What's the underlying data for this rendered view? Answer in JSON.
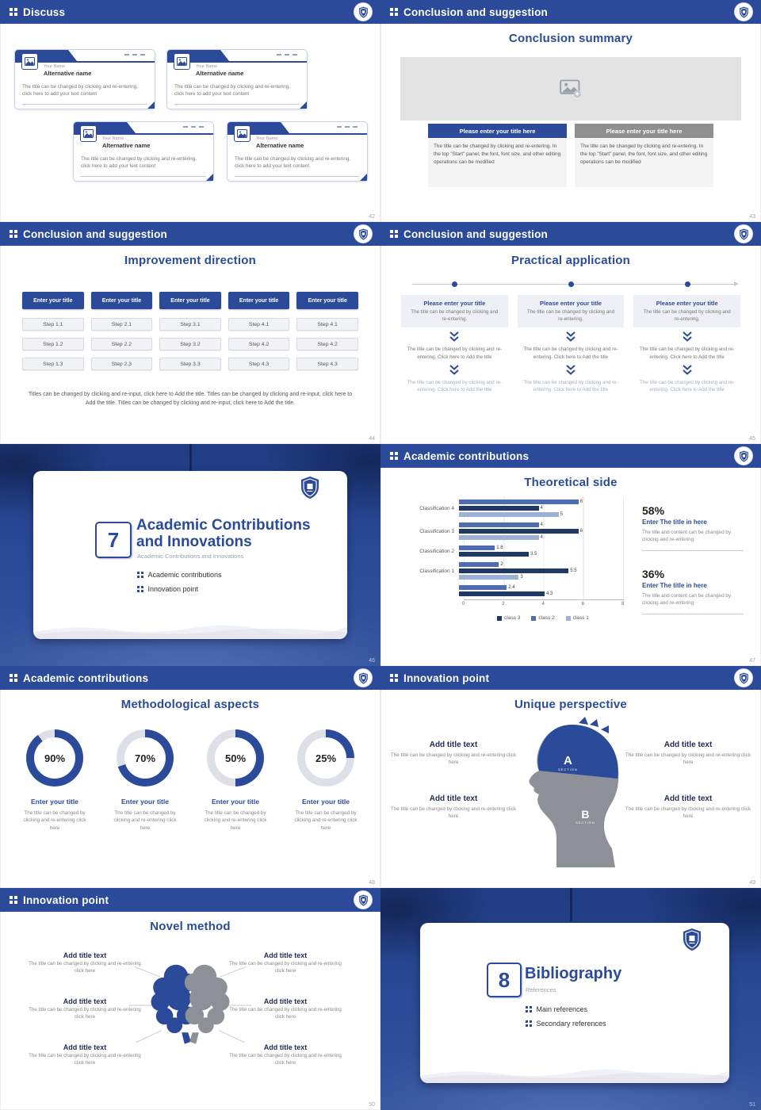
{
  "colors": {
    "accent": "#2b4a99",
    "gray_button": "#8f8f8f",
    "bar_medium": "#4d6db0",
    "bar_dark": "#1f3864",
    "bar_light": "#9db1d6"
  },
  "icons": {
    "header_bullet": "grid-dots",
    "emblem": "university-shield",
    "image_placeholder": "picture-plus",
    "chevron": "double-chevron-down",
    "corner_fold": "folded-corner"
  },
  "s42": {
    "header": "Discuss",
    "page": "42",
    "card": {
      "name": "Your Name",
      "alt": "Alternative name",
      "body": "The title can be changed by clicking and re-entering, click here to add your text content"
    }
  },
  "s43": {
    "header": "Conclusion and suggestion",
    "title": "Conclusion summary",
    "page": "43",
    "btn_blue": "Please enter your title here",
    "btn_gray": "Please enter your title here",
    "body": "The title can be changed by clicking and re-entering. In the top \"Start\" panel, the font, font size, and other editing operations can be modified"
  },
  "s44": {
    "header": "Conclusion and suggestion",
    "title": "Improvement direction",
    "page": "44",
    "columns": [
      {
        "title": "Enter your title",
        "steps": [
          "Step 1.1",
          "Step 1.2",
          "Step 1.3"
        ]
      },
      {
        "title": "Enter your title",
        "steps": [
          "Step 2.1",
          "Step 2.2",
          "Step 2.3"
        ]
      },
      {
        "title": "Enter your title",
        "steps": [
          "Step 3.1",
          "Step 3.2",
          "Step 3.3"
        ]
      },
      {
        "title": "Enter your title",
        "steps": [
          "Step 4.1",
          "Step 4.2",
          "Step 4.3"
        ]
      },
      {
        "title": "Enter your title",
        "steps": [
          "Step 4.1",
          "Step 4.2",
          "Step 4.3"
        ]
      }
    ],
    "footer": "Titles can be changed by clicking and re-input, click here to Add the title. Titles can be changed by clicking and re-input, click here to Add the title. Titles can be changed by clicking and re-input, click here to Add the title."
  },
  "s45": {
    "header": "Conclusion and suggestion",
    "title": "Practical application",
    "page": "45",
    "col": {
      "box_title": "Please enter your title",
      "box_body": "The title can be changed by clicking and re-entering.",
      "mid_text": "The title can be changed by clicking and re-entering. Click here to Add the title",
      "bottom_text": "The title can be changed by clicking and re-entering. Click here to Add the title"
    }
  },
  "s46": {
    "page": "46",
    "number": "7",
    "title": "Academic Contributions and Innovations",
    "subtitle": "Academic Contributions and Innovations",
    "bullets": [
      "Academic contributions",
      "Innovation point"
    ]
  },
  "s47": {
    "header": "Academic contributions",
    "title": "Theoretical side",
    "page": "47",
    "chart_data": {
      "type": "bar",
      "orientation": "horizontal",
      "title": "Theoretical side",
      "xlim": [
        0,
        8
      ],
      "xticks": [
        0,
        2,
        4,
        6,
        8
      ],
      "legend": [
        "class 3",
        "class 2",
        "class 1"
      ],
      "legend_colors": [
        "#1f3864",
        "#4d6db0",
        "#9db1d6"
      ],
      "bar_colors": [
        "#4d6db0",
        "#1f3864",
        "#9db1d6"
      ],
      "groups": [
        {
          "label": "Classification 4",
          "values": [
            6,
            4,
            5
          ]
        },
        {
          "label": "Classification 3",
          "values": [
            4,
            6,
            4
          ]
        },
        {
          "label": "Classification 2",
          "values": [
            1.8,
            3.5
          ]
        },
        {
          "label": "Classification 1",
          "values": [
            2,
            5.5,
            3
          ]
        },
        {
          "label": "",
          "values": [
            2.4,
            4.3
          ]
        }
      ]
    },
    "stats": [
      {
        "pct": "58%",
        "title": "Enter The title in here",
        "body": "The title and content can be changed by clicking and re-entering."
      },
      {
        "pct": "36%",
        "title": "Enter The title in here",
        "body": "The title and content can be changed by clicking and re-entering."
      }
    ]
  },
  "s48": {
    "header": "Academic contributions",
    "title": "Methodological aspects",
    "page": "48",
    "item_title": "Enter your title",
    "item_body": "The title can be changed by clicking and re-entering click here",
    "items": [
      {
        "pct": 90,
        "label": "90%"
      },
      {
        "pct": 70,
        "label": "70%"
      },
      {
        "pct": 50,
        "label": "50%"
      },
      {
        "pct": 25,
        "label": "25%"
      }
    ]
  },
  "s49": {
    "header": "Innovation point",
    "title": "Unique perspective",
    "page": "49",
    "item_title": "Add title text",
    "item_body": "The title can be changed by clicking and re-entering click here",
    "section_a": "A",
    "section_b": "B",
    "section_label": "SECTION"
  },
  "s50": {
    "header": "Innovation point",
    "title": "Novel method",
    "page": "50",
    "item_title": "Add title text",
    "item_body": "The title can be changed by clicking and re-entering click here"
  },
  "s51": {
    "page": "51",
    "number": "8",
    "title": "Bibliography",
    "subtitle": "References",
    "bullets": [
      "Main references",
      "Secondary references"
    ]
  }
}
